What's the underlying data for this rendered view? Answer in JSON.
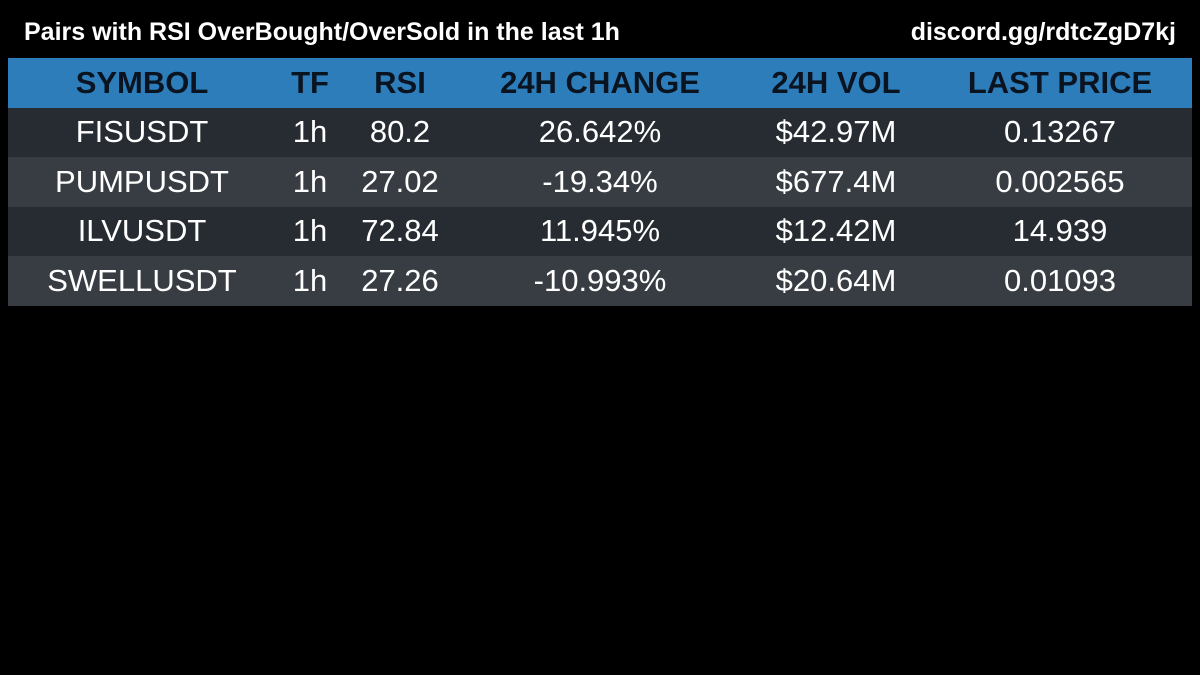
{
  "header": {
    "title": "Pairs with RSI OverBought/OverSold in the last 1h",
    "link": "discord.gg/rdtcZgD7kj"
  },
  "table": {
    "columns": [
      "SYMBOL",
      "TF",
      "RSI",
      "24H CHANGE",
      "24H VOL",
      "LAST PRICE"
    ],
    "rows": [
      [
        "FISUSDT",
        "1h",
        "80.2",
        "26.642%",
        "$42.97M",
        "0.13267"
      ],
      [
        "PUMPUSDT",
        "1h",
        "27.02",
        "-19.34%",
        "$677.4M",
        "0.002565"
      ],
      [
        "ILVUSDT",
        "1h",
        "72.84",
        "11.945%",
        "$12.42M",
        "14.939"
      ],
      [
        "SWELLUSDT",
        "1h",
        "27.26",
        "-10.993%",
        "$20.64M",
        "0.01093"
      ]
    ]
  }
}
